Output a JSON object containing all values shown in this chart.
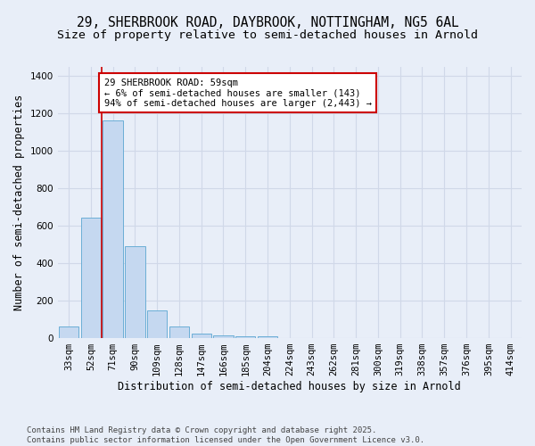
{
  "title_line1": "29, SHERBROOK ROAD, DAYBROOK, NOTTINGHAM, NG5 6AL",
  "title_line2": "Size of property relative to semi-detached houses in Arnold",
  "xlabel": "Distribution of semi-detached houses by size in Arnold",
  "ylabel": "Number of semi-detached properties",
  "categories": [
    "33sqm",
    "52sqm",
    "71sqm",
    "90sqm",
    "109sqm",
    "128sqm",
    "147sqm",
    "166sqm",
    "185sqm",
    "204sqm",
    "224sqm",
    "243sqm",
    "262sqm",
    "281sqm",
    "300sqm",
    "319sqm",
    "338sqm",
    "357sqm",
    "376sqm",
    "395sqm",
    "414sqm"
  ],
  "values": [
    62,
    643,
    1163,
    493,
    148,
    62,
    25,
    15,
    10,
    8,
    0,
    0,
    0,
    0,
    0,
    0,
    0,
    0,
    0,
    0,
    0
  ],
  "bar_color": "#c5d8f0",
  "bar_edge_color": "#6baed6",
  "vline_x": 1.5,
  "vline_color": "#cc0000",
  "annotation_text": "29 SHERBROOK ROAD: 59sqm\n← 6% of semi-detached houses are smaller (143)\n94% of semi-detached houses are larger (2,443) →",
  "annotation_box_color": "#cc0000",
  "annotation_bg": "white",
  "ylim": [
    0,
    1450
  ],
  "yticks": [
    0,
    200,
    400,
    600,
    800,
    1000,
    1200,
    1400
  ],
  "footnote_line1": "Contains HM Land Registry data © Crown copyright and database right 2025.",
  "footnote_line2": "Contains public sector information licensed under the Open Government Licence v3.0.",
  "bg_color": "#e8eef8",
  "grid_color": "#d0d8e8",
  "title_fontsize": 10.5,
  "subtitle_fontsize": 9.5,
  "axis_label_fontsize": 8.5,
  "tick_fontsize": 7.5,
  "annotation_fontsize": 7.5,
  "footnote_fontsize": 6.5
}
